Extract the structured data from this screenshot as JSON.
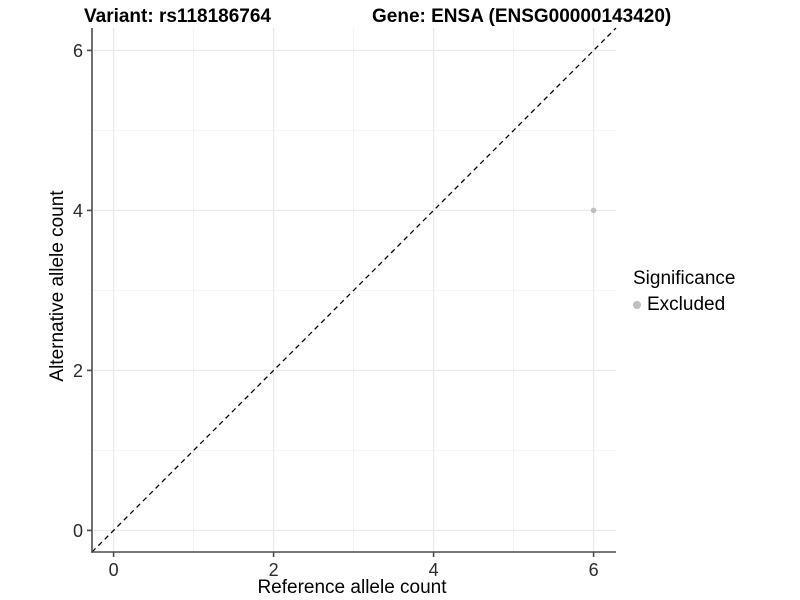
{
  "titles": {
    "variant": "Variant: rs118186764",
    "gene": "Gene: ENSA (ENSG00000143420)"
  },
  "axes": {
    "x_title": "Reference allele count",
    "y_title": "Alternative allele count"
  },
  "legend": {
    "title": "Significance",
    "items": [
      {
        "label": "Excluded",
        "color": "#bfbfbf"
      }
    ]
  },
  "chart_data": {
    "type": "scatter",
    "title": "Variant: rs118186764 / Gene: ENSA (ENSG00000143420)",
    "xlabel": "Reference allele count",
    "ylabel": "Alternative allele count",
    "xlim": [
      -0.27,
      6.28
    ],
    "ylim": [
      -0.27,
      6.28
    ],
    "x_ticks": [
      0,
      2,
      4,
      6
    ],
    "y_ticks": [
      0,
      2,
      4,
      6
    ],
    "x_minor_ticks": [
      1,
      3,
      5
    ],
    "y_minor_ticks": [
      1,
      3,
      5
    ],
    "grid": "major+minor",
    "legend_position": "right",
    "series": [
      {
        "name": "Excluded",
        "color": "#bfbfbf",
        "marker": "circle",
        "marker_radius": 2.8,
        "points": [
          [
            6,
            4
          ]
        ]
      }
    ],
    "reference_line": {
      "kind": "identity y=x",
      "style": "dashed",
      "color": "#000000",
      "from": [
        -0.27,
        -0.27
      ],
      "to": [
        6.28,
        6.28
      ]
    }
  },
  "style": {
    "background": "#ffffff",
    "grid_major_color": "#e7e7e7",
    "grid_minor_color": "#f2f2f2",
    "axis_line_color": "#4d4d4d",
    "tick_label_color": "#2b2b2b",
    "tick_font_size": 18
  }
}
